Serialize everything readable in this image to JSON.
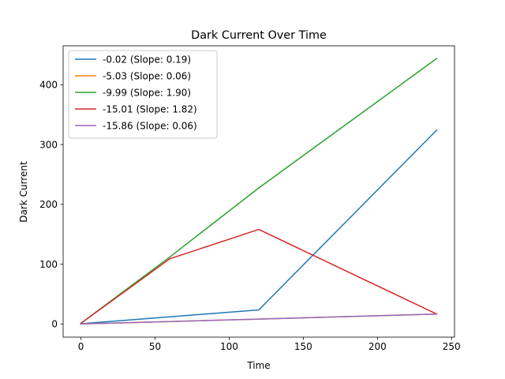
{
  "chart_data": {
    "type": "line",
    "title": "Dark Current Over Time",
    "xlabel": "Time",
    "ylabel": "Dark Current",
    "xlim": [
      -12,
      252
    ],
    "ylim": [
      -22.15,
      465.2
    ],
    "xticks": [
      0,
      50,
      100,
      150,
      200,
      250
    ],
    "yticks": [
      0,
      100,
      200,
      300,
      400
    ],
    "grid": false,
    "legend_position": "upper-left",
    "series": [
      {
        "name": "-0.02 (Slope: 0.19)",
        "color": "#1f77b4",
        "x": [
          0,
          1,
          120,
          240
        ],
        "y": [
          0,
          0.5,
          23.5,
          324.2
        ]
      },
      {
        "name": "-5.03 (Slope: 0.06)",
        "color": "#ff7f0e",
        "x": [
          0,
          60,
          120,
          240
        ],
        "y": [
          0,
          4,
          8,
          16.5
        ]
      },
      {
        "name": "-9.99 (Slope: 1.90)",
        "color": "#2ca02c",
        "x": [
          0,
          60,
          120,
          240
        ],
        "y": [
          1,
          112,
          227.5,
          444
        ]
      },
      {
        "name": "-15.01 (Slope: 1.82)",
        "color": "#d62728",
        "x": [
          0,
          60,
          120,
          240
        ],
        "y": [
          1,
          109,
          158,
          16.5
        ]
      },
      {
        "name": "-15.86 (Slope: 0.06)",
        "color": "#9467bd",
        "x": [
          0,
          60,
          120,
          240
        ],
        "y": [
          0,
          4,
          8,
          16.5
        ]
      }
    ]
  }
}
